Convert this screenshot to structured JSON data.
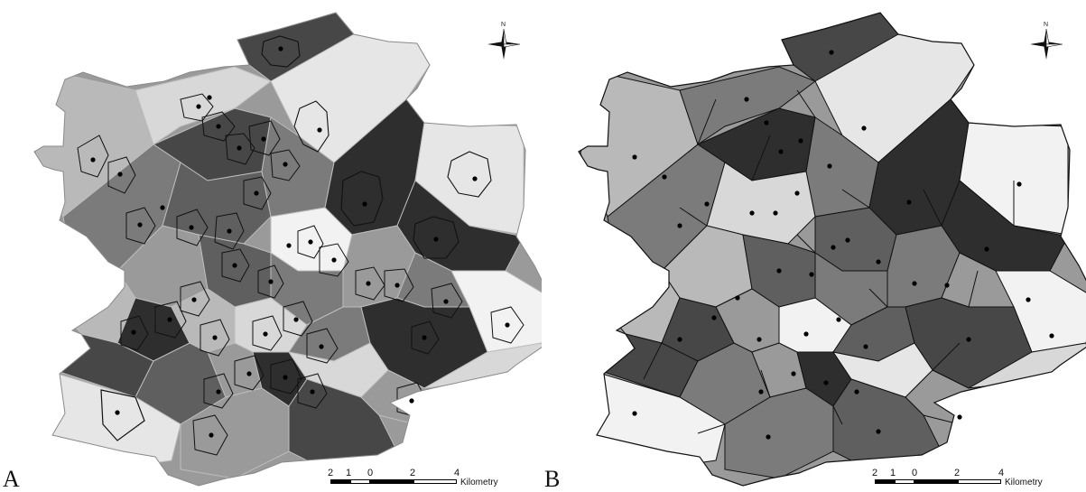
{
  "figure": {
    "panels": [
      {
        "letter": "A",
        "north_label": "N",
        "scale": {
          "ticks": [
            "2",
            "1",
            "0",
            "2",
            "4"
          ],
          "unit": "Kilometry"
        }
      },
      {
        "letter": "B",
        "north_label": "N",
        "scale": {
          "ticks": [
            "2",
            "1",
            "0",
            "2",
            "4"
          ],
          "unit": "Kilometry"
        }
      }
    ]
  },
  "map": {
    "style": "grayscale choropleth of Voronoi cells with settlement centroid points",
    "shade_colors": [
      "#2e2e2e",
      "#474747",
      "#5f5f5f",
      "#7b7b7b",
      "#9a9a9a",
      "#b9b9b9",
      "#d8d8d8",
      "#f2f2f2"
    ],
    "outline_color": "#111111",
    "icons": [
      "north-arrow-icon"
    ]
  }
}
